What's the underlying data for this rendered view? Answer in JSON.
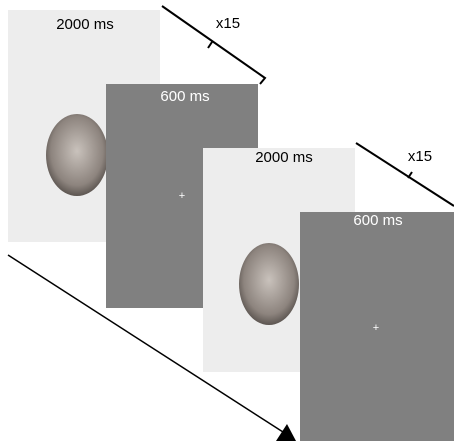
{
  "trials": [
    {
      "face_duration": "2000 ms",
      "repeat": "x15",
      "blank_duration": "600 ms",
      "fixation": "+"
    },
    {
      "face_duration": "2000 ms",
      "repeat": "x15",
      "blank_duration": "600 ms",
      "fixation": "+"
    }
  ]
}
